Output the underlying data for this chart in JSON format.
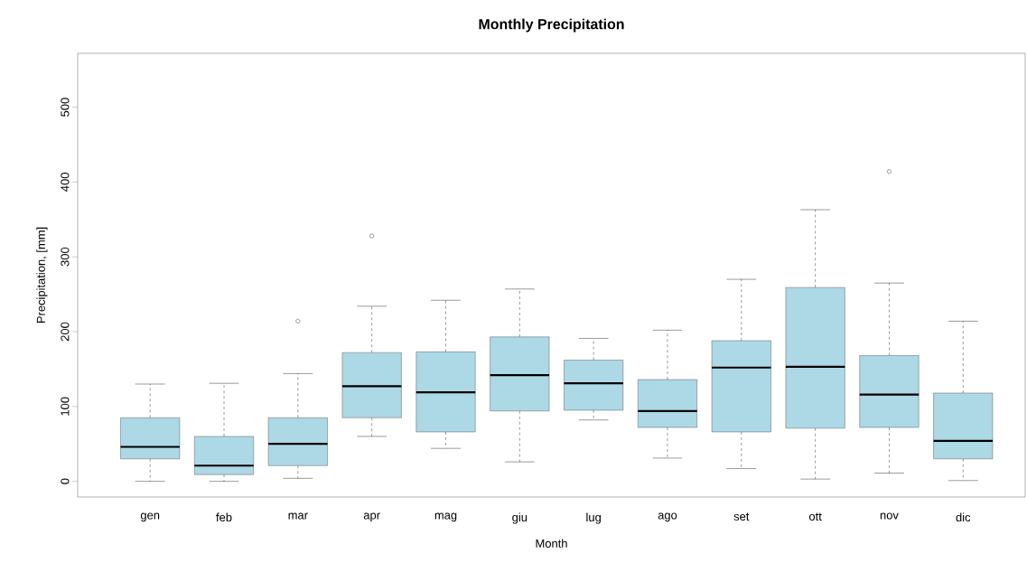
{
  "chart_data": {
    "type": "box",
    "title": "Monthly Precipitation",
    "xlabel": "Month",
    "ylabel": "Precipitation, [mm]",
    "categories": [
      "gen",
      "feb",
      "mar",
      "apr",
      "mag",
      "giu",
      "lug",
      "ago",
      "set",
      "ott",
      "nov",
      "dic"
    ],
    "color": "#add8e6",
    "boxes": [
      {
        "low": 0,
        "q1": 30,
        "median": 46,
        "q3": 85,
        "high": 130
      },
      {
        "low": 0,
        "q1": 9,
        "median": 21,
        "q3": 60,
        "high": 131
      },
      {
        "low": 4,
        "q1": 21,
        "median": 50,
        "q3": 85,
        "high": 144,
        "outliers": [
          214
        ]
      },
      {
        "low": 60,
        "q1": 85,
        "median": 127,
        "q3": 172,
        "high": 234,
        "outliers": [
          328
        ]
      },
      {
        "low": 44,
        "q1": 66,
        "median": 119,
        "q3": 173,
        "high": 242
      },
      {
        "low": 26,
        "q1": 94,
        "median": 142,
        "q3": 193,
        "high": 257
      },
      {
        "low": 82,
        "q1": 95,
        "median": 131,
        "q3": 162,
        "high": 191
      },
      {
        "low": 31,
        "q1": 72,
        "median": 94,
        "q3": 136,
        "high": 202
      },
      {
        "low": 17,
        "q1": 66,
        "median": 152,
        "q3": 188,
        "high": 270
      },
      {
        "low": 3,
        "q1": 71,
        "median": 153,
        "q3": 259,
        "high": 363
      },
      {
        "low": 11,
        "q1": 72,
        "median": 116,
        "q3": 168,
        "high": 265,
        "outliers": [
          414
        ]
      },
      {
        "low": 1,
        "q1": 30,
        "median": 54,
        "q3": 118,
        "high": 214
      }
    ],
    "ylim": [
      -21,
      572
    ],
    "yticks": [
      0,
      100,
      200,
      300,
      400,
      500
    ]
  }
}
